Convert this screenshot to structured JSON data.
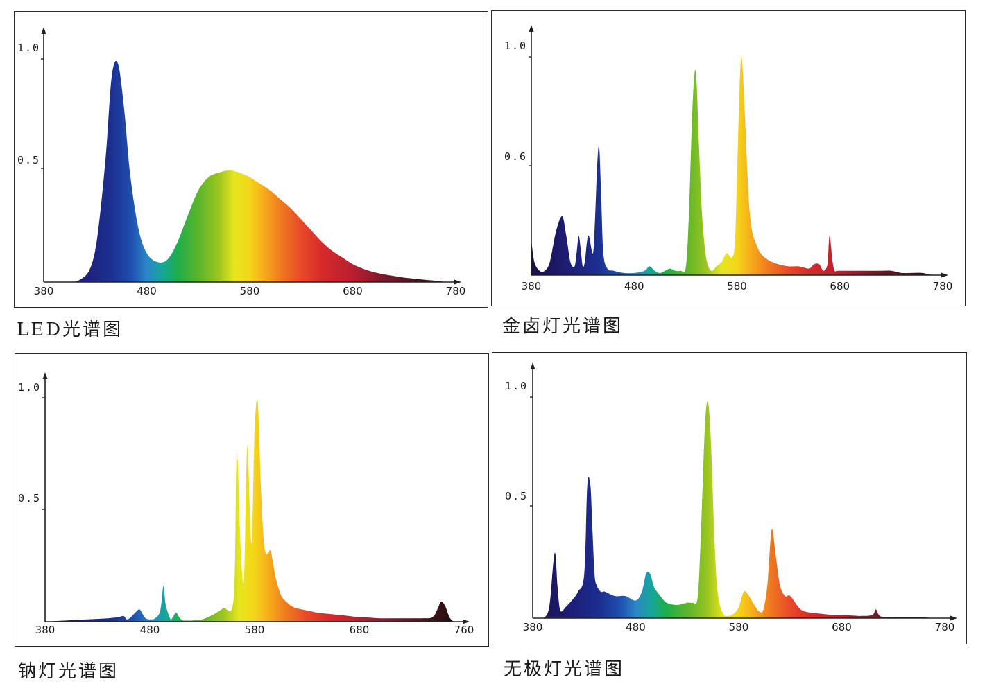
{
  "chart_data": [
    {
      "type": "area",
      "title": "LED光谱图",
      "x_ticks": [
        "380",
        "480",
        "580",
        "680",
        "780"
      ],
      "y_ticks": [
        "1.0",
        "0.5"
      ],
      "xlim": [
        380,
        780
      ],
      "ylim": [
        0,
        1.0
      ],
      "series": [
        {
          "x": [
            380,
            405,
            415,
            425,
            432,
            440,
            446,
            452,
            458,
            464,
            472,
            480,
            490,
            500,
            510,
            520,
            530,
            540,
            550,
            560,
            570,
            580,
            590,
            600,
            610,
            620,
            630,
            640,
            650,
            660,
            670,
            680,
            690,
            700,
            710,
            720,
            730,
            740,
            750,
            760,
            770
          ],
          "y": [
            0,
            0,
            0.01,
            0.06,
            0.2,
            0.55,
            0.92,
            0.98,
            0.78,
            0.48,
            0.24,
            0.13,
            0.09,
            0.1,
            0.18,
            0.3,
            0.41,
            0.47,
            0.49,
            0.5,
            0.49,
            0.47,
            0.44,
            0.41,
            0.37,
            0.33,
            0.28,
            0.23,
            0.18,
            0.14,
            0.11,
            0.08,
            0.06,
            0.045,
            0.035,
            0.027,
            0.02,
            0.015,
            0.01,
            0.006,
            0
          ]
        }
      ]
    },
    {
      "type": "area",
      "title": "金卤灯光谱图",
      "x_ticks": [
        "380",
        "480",
        "580",
        "680",
        "780"
      ],
      "y_ticks": [
        "1.0",
        "0.6"
      ],
      "xlim": [
        380,
        780
      ],
      "ylim": [
        0,
        1.0
      ],
      "series": [
        {
          "x": [
            380,
            383,
            388,
            393,
            398,
            404,
            410,
            414,
            418,
            422,
            424,
            426,
            428,
            430,
            432,
            434,
            436,
            440,
            442,
            444,
            446,
            448,
            450,
            454,
            460,
            470,
            480,
            490,
            495,
            500,
            505,
            510,
            515,
            520,
            525,
            530,
            533,
            537,
            540,
            543,
            546,
            550,
            555,
            560,
            565,
            570,
            575,
            578,
            580,
            583,
            585,
            588,
            591,
            594,
            598,
            603,
            610,
            620,
            630,
            640,
            650,
            655,
            660,
            664,
            668,
            670,
            673,
            675,
            677,
            680,
            690,
            700,
            710,
            720,
            730,
            740,
            750,
            760,
            770
          ],
          "y": [
            0.16,
            0.06,
            0.02,
            0.02,
            0.06,
            0.2,
            0.27,
            0.18,
            0.06,
            0.04,
            0.1,
            0.18,
            0.12,
            0.04,
            0.06,
            0.15,
            0.18,
            0.1,
            0.26,
            0.5,
            0.59,
            0.35,
            0.1,
            0.03,
            0.02,
            0.01,
            0.01,
            0.02,
            0.04,
            0.02,
            0.01,
            0.02,
            0.03,
            0.02,
            0.02,
            0.03,
            0.25,
            0.8,
            0.93,
            0.6,
            0.28,
            0.08,
            0.02,
            0.04,
            0.06,
            0.1,
            0.08,
            0.15,
            0.45,
            0.92,
            0.98,
            0.7,
            0.38,
            0.22,
            0.15,
            0.1,
            0.07,
            0.05,
            0.04,
            0.04,
            0.03,
            0.05,
            0.05,
            0.02,
            0.05,
            0.18,
            0.06,
            0.02,
            0.02,
            0.02,
            0.02,
            0.02,
            0.02,
            0.02,
            0.02,
            0.01,
            0.01,
            0.01,
            0
          ]
        }
      ]
    },
    {
      "type": "area",
      "title": "钠灯光谱图",
      "x_ticks": [
        "380",
        "480",
        "580",
        "680",
        "760"
      ],
      "y_ticks": [
        "1.0",
        "0.5"
      ],
      "xlim": [
        380,
        780
      ],
      "ylim": [
        0,
        1.0
      ],
      "series": [
        {
          "x": [
            380,
            400,
            420,
            440,
            450,
            455,
            458,
            462,
            466,
            470,
            473,
            476,
            480,
            485,
            490,
            493,
            495,
            498,
            500,
            502,
            505,
            508,
            510,
            512,
            514,
            516,
            520,
            530,
            540,
            550,
            560,
            563,
            567,
            570,
            573,
            577,
            580,
            583,
            586,
            589,
            592,
            595,
            597,
            600,
            605,
            610,
            615,
            620,
            630,
            640,
            650,
            660,
            670,
            680,
            690,
            700,
            720,
            740,
            750,
            755,
            758,
            762,
            766,
            770
          ],
          "y": [
            0,
            0.005,
            0.01,
            0.015,
            0.02,
            0.025,
            0.01,
            0.02,
            0.04,
            0.055,
            0.035,
            0.015,
            0.01,
            0.015,
            0.05,
            0.16,
            0.08,
            0.03,
            0.01,
            0.02,
            0.04,
            0.02,
            0.01,
            0.005,
            0.005,
            0.005,
            0.005,
            0.01,
            0.03,
            0.06,
            0.1,
            0.75,
            0.3,
            0.2,
            0.78,
            0.35,
            0.85,
            0.98,
            0.6,
            0.35,
            0.3,
            0.32,
            0.28,
            0.2,
            0.12,
            0.09,
            0.07,
            0.06,
            0.05,
            0.04,
            0.035,
            0.03,
            0.025,
            0.02,
            0.018,
            0.015,
            0.015,
            0.015,
            0.02,
            0.06,
            0.09,
            0.07,
            0.02,
            0
          ]
        }
      ]
    },
    {
      "type": "area",
      "title": "无极灯光谱图",
      "x_ticks": [
        "380",
        "480",
        "580",
        "680",
        "780"
      ],
      "y_ticks": [
        "1.0",
        "0.5"
      ],
      "xlim": [
        380,
        780
      ],
      "ylim": [
        0,
        1.0
      ],
      "series": [
        {
          "x": [
            380,
            390,
            396,
            400,
            402,
            404,
            406,
            408,
            412,
            418,
            424,
            430,
            433,
            436,
            438,
            440,
            442,
            446,
            450,
            460,
            470,
            480,
            486,
            490,
            494,
            498,
            504,
            510,
            520,
            530,
            535,
            540,
            543,
            547,
            550,
            553,
            557,
            560,
            565,
            570,
            575,
            580,
            585,
            590,
            595,
            600,
            604,
            608,
            612,
            616,
            620,
            625,
            630,
            640,
            650,
            660,
            670,
            680,
            690,
            700,
            710,
            713,
            716,
            720,
            730,
            740,
            750,
            760,
            770
          ],
          "y": [
            0,
            0.0,
            0.05,
            0.25,
            0.29,
            0.15,
            0.05,
            0.03,
            0.05,
            0.08,
            0.12,
            0.2,
            0.6,
            0.6,
            0.4,
            0.2,
            0.15,
            0.12,
            0.12,
            0.1,
            0.1,
            0.08,
            0.12,
            0.2,
            0.2,
            0.14,
            0.1,
            0.07,
            0.06,
            0.07,
            0.07,
            0.09,
            0.35,
            0.85,
            0.98,
            0.8,
            0.3,
            0.1,
            0.02,
            0.01,
            0.02,
            0.05,
            0.12,
            0.1,
            0.06,
            0.03,
            0.04,
            0.16,
            0.4,
            0.28,
            0.15,
            0.1,
            0.1,
            0.04,
            0.025,
            0.02,
            0.015,
            0.015,
            0.012,
            0.01,
            0.015,
            0.04,
            0.015,
            0.005,
            0.003,
            0.003,
            0.003,
            0.003,
            0
          ]
        }
      ]
    }
  ]
}
